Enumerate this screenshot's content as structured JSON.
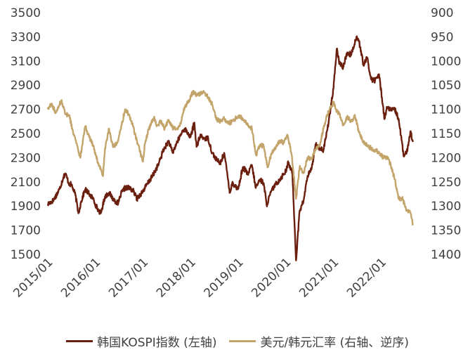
{
  "chart_data": {
    "type": "line",
    "title": "",
    "x_tick_labels": [
      "2015/01",
      "2016/01",
      "2017/01",
      "2018/01",
      "2019/01",
      "2020/01",
      "2021/01",
      "2022/01"
    ],
    "x_range": [
      "2015-01-01",
      "2022-09-30"
    ],
    "y_left": {
      "ticks": [
        1500,
        1700,
        1900,
        2100,
        2300,
        2500,
        2700,
        2900,
        3100,
        3300,
        3500
      ],
      "range": [
        1500,
        3500
      ]
    },
    "y_right": {
      "ticks": [
        900,
        950,
        1000,
        1050,
        1100,
        1150,
        1200,
        1250,
        1300,
        1350,
        1400
      ],
      "range": [
        900,
        1400
      ],
      "reversed": true
    },
    "grid": false,
    "legend_position": "bottom",
    "series": [
      {
        "name": "韩国KOSPI指数 (左轴)",
        "axis": "left",
        "color": "#6B1F0E",
        "points": [
          [
            "2015-01-01",
            1915
          ],
          [
            "2015-02-15",
            1950
          ],
          [
            "2015-04-01",
            2040
          ],
          [
            "2015-05-01",
            2140
          ],
          [
            "2015-05-15",
            2170
          ],
          [
            "2015-06-15",
            2080
          ],
          [
            "2015-07-01",
            2080
          ],
          [
            "2015-08-01",
            1990
          ],
          [
            "2015-08-24",
            1840
          ],
          [
            "2015-09-15",
            1940
          ],
          [
            "2015-10-15",
            2040
          ],
          [
            "2015-11-15",
            2000
          ],
          [
            "2015-12-15",
            1960
          ],
          [
            "2016-01-15",
            1880
          ],
          [
            "2016-02-12",
            1840
          ],
          [
            "2016-03-15",
            1980
          ],
          [
            "2016-04-15",
            2010
          ],
          [
            "2016-05-15",
            1960
          ],
          [
            "2016-06-24",
            1920
          ],
          [
            "2016-07-15",
            2000
          ],
          [
            "2016-08-15",
            2050
          ],
          [
            "2016-09-15",
            2050
          ],
          [
            "2016-10-15",
            2030
          ],
          [
            "2016-11-15",
            1960
          ],
          [
            "2016-12-31",
            2025
          ],
          [
            "2017-02-01",
            2080
          ],
          [
            "2017-03-15",
            2150
          ],
          [
            "2017-05-01",
            2250
          ],
          [
            "2017-06-01",
            2350
          ],
          [
            "2017-07-15",
            2440
          ],
          [
            "2017-08-15",
            2340
          ],
          [
            "2017-09-15",
            2420
          ],
          [
            "2017-10-31",
            2520
          ],
          [
            "2017-11-15",
            2540
          ],
          [
            "2017-12-31",
            2470
          ],
          [
            "2018-01-29",
            2590
          ],
          [
            "2018-02-15",
            2390
          ],
          [
            "2018-03-15",
            2480
          ],
          [
            "2018-04-15",
            2460
          ],
          [
            "2018-05-15",
            2460
          ],
          [
            "2018-06-15",
            2340
          ],
          [
            "2018-07-15",
            2290
          ],
          [
            "2018-08-15",
            2250
          ],
          [
            "2018-09-15",
            2340
          ],
          [
            "2018-10-29",
            2010
          ],
          [
            "2018-11-15",
            2090
          ],
          [
            "2018-12-31",
            2040
          ],
          [
            "2019-01-31",
            2200
          ],
          [
            "2019-02-15",
            2210
          ],
          [
            "2019-03-15",
            2160
          ],
          [
            "2019-04-15",
            2240
          ],
          [
            "2019-05-15",
            2050
          ],
          [
            "2019-06-15",
            2120
          ],
          [
            "2019-07-15",
            2090
          ],
          [
            "2019-08-06",
            1910
          ],
          [
            "2019-09-15",
            2030
          ],
          [
            "2019-10-15",
            2080
          ],
          [
            "2019-11-15",
            2120
          ],
          [
            "2019-12-31",
            2190
          ],
          [
            "2020-01-20",
            2260
          ],
          [
            "2020-02-20",
            2170
          ],
          [
            "2020-03-19",
            1450
          ],
          [
            "2020-04-15",
            1860
          ],
          [
            "2020-05-15",
            1940
          ],
          [
            "2020-06-15",
            2150
          ],
          [
            "2020-07-15",
            2200
          ],
          [
            "2020-08-15",
            2410
          ],
          [
            "2020-09-15",
            2380
          ],
          [
            "2020-10-15",
            2360
          ],
          [
            "2020-11-15",
            2540
          ],
          [
            "2020-12-31",
            2870
          ],
          [
            "2021-01-25",
            3200
          ],
          [
            "2021-02-15",
            3080
          ],
          [
            "2021-03-15",
            3050
          ],
          [
            "2021-04-15",
            3170
          ],
          [
            "2021-05-15",
            3150
          ],
          [
            "2021-06-25",
            3300
          ],
          [
            "2021-07-15",
            3260
          ],
          [
            "2021-08-20",
            3060
          ],
          [
            "2021-09-15",
            3130
          ],
          [
            "2021-10-15",
            2950
          ],
          [
            "2021-11-15",
            2940
          ],
          [
            "2021-12-15",
            2990
          ],
          [
            "2022-01-27",
            2620
          ],
          [
            "2022-02-15",
            2720
          ],
          [
            "2022-03-15",
            2690
          ],
          [
            "2022-04-15",
            2700
          ],
          [
            "2022-05-15",
            2620
          ],
          [
            "2022-06-23",
            2310
          ],
          [
            "2022-07-15",
            2340
          ],
          [
            "2022-08-15",
            2520
          ],
          [
            "2022-09-01",
            2430
          ]
        ]
      },
      {
        "name": "美元/韩元汇率 (右轴、逆序)",
        "axis": "right",
        "color": "#C3A46B",
        "points": [
          [
            "2015-01-01",
            1100
          ],
          [
            "2015-02-01",
            1088
          ],
          [
            "2015-03-01",
            1108
          ],
          [
            "2015-04-15",
            1082
          ],
          [
            "2015-05-15",
            1110
          ],
          [
            "2015-06-15",
            1112
          ],
          [
            "2015-07-15",
            1150
          ],
          [
            "2015-08-15",
            1175
          ],
          [
            "2015-09-07",
            1200
          ],
          [
            "2015-10-15",
            1135
          ],
          [
            "2015-11-15",
            1158
          ],
          [
            "2015-12-15",
            1175
          ],
          [
            "2016-01-15",
            1205
          ],
          [
            "2016-02-29",
            1238
          ],
          [
            "2016-03-15",
            1180
          ],
          [
            "2016-04-15",
            1140
          ],
          [
            "2016-05-15",
            1178
          ],
          [
            "2016-06-15",
            1170
          ],
          [
            "2016-07-15",
            1140
          ],
          [
            "2016-08-15",
            1100
          ],
          [
            "2016-09-15",
            1110
          ],
          [
            "2016-10-15",
            1135
          ],
          [
            "2016-11-15",
            1165
          ],
          [
            "2016-12-31",
            1208
          ],
          [
            "2017-01-15",
            1170
          ],
          [
            "2017-02-15",
            1140
          ],
          [
            "2017-03-27",
            1115
          ],
          [
            "2017-04-15",
            1135
          ],
          [
            "2017-05-15",
            1125
          ],
          [
            "2017-06-15",
            1140
          ],
          [
            "2017-07-15",
            1122
          ],
          [
            "2017-08-15",
            1138
          ],
          [
            "2017-09-15",
            1140
          ],
          [
            "2017-10-15",
            1130
          ],
          [
            "2017-11-15",
            1095
          ],
          [
            "2017-12-15",
            1085
          ],
          [
            "2018-01-15",
            1065
          ],
          [
            "2018-02-15",
            1070
          ],
          [
            "2018-03-15",
            1068
          ],
          [
            "2018-04-15",
            1065
          ],
          [
            "2018-05-15",
            1075
          ],
          [
            "2018-06-15",
            1090
          ],
          [
            "2018-07-15",
            1120
          ],
          [
            "2018-08-15",
            1125
          ],
          [
            "2018-09-15",
            1118
          ],
          [
            "2018-10-15",
            1130
          ],
          [
            "2018-11-15",
            1125
          ],
          [
            "2018-12-15",
            1118
          ],
          [
            "2019-01-15",
            1115
          ],
          [
            "2019-02-15",
            1122
          ],
          [
            "2019-03-15",
            1130
          ],
          [
            "2019-04-15",
            1140
          ],
          [
            "2019-05-17",
            1195
          ],
          [
            "2019-06-15",
            1175
          ],
          [
            "2019-07-15",
            1175
          ],
          [
            "2019-08-13",
            1220
          ],
          [
            "2019-09-15",
            1190
          ],
          [
            "2019-10-15",
            1180
          ],
          [
            "2019-11-15",
            1165
          ],
          [
            "2019-12-15",
            1170
          ],
          [
            "2020-01-15",
            1155
          ],
          [
            "2020-02-15",
            1195
          ],
          [
            "2020-03-19",
            1285
          ],
          [
            "2020-04-15",
            1220
          ],
          [
            "2020-05-15",
            1232
          ],
          [
            "2020-06-15",
            1200
          ],
          [
            "2020-07-15",
            1203
          ],
          [
            "2020-08-15",
            1185
          ],
          [
            "2020-09-15",
            1175
          ],
          [
            "2020-10-15",
            1140
          ],
          [
            "2020-11-15",
            1110
          ],
          [
            "2020-12-31",
            1085
          ],
          [
            "2021-01-15",
            1098
          ],
          [
            "2021-02-15",
            1110
          ],
          [
            "2021-03-15",
            1132
          ],
          [
            "2021-04-15",
            1115
          ],
          [
            "2021-05-15",
            1125
          ],
          [
            "2021-06-15",
            1115
          ],
          [
            "2021-07-15",
            1148
          ],
          [
            "2021-08-15",
            1165
          ],
          [
            "2021-09-15",
            1175
          ],
          [
            "2021-10-15",
            1180
          ],
          [
            "2021-11-15",
            1185
          ],
          [
            "2021-12-15",
            1188
          ],
          [
            "2022-01-15",
            1200
          ],
          [
            "2022-02-15",
            1198
          ],
          [
            "2022-03-15",
            1215
          ],
          [
            "2022-04-15",
            1245
          ],
          [
            "2022-05-15",
            1285
          ],
          [
            "2022-06-15",
            1285
          ],
          [
            "2022-07-15",
            1310
          ],
          [
            "2022-08-15",
            1315
          ],
          [
            "2022-09-01",
            1340
          ]
        ]
      }
    ]
  }
}
